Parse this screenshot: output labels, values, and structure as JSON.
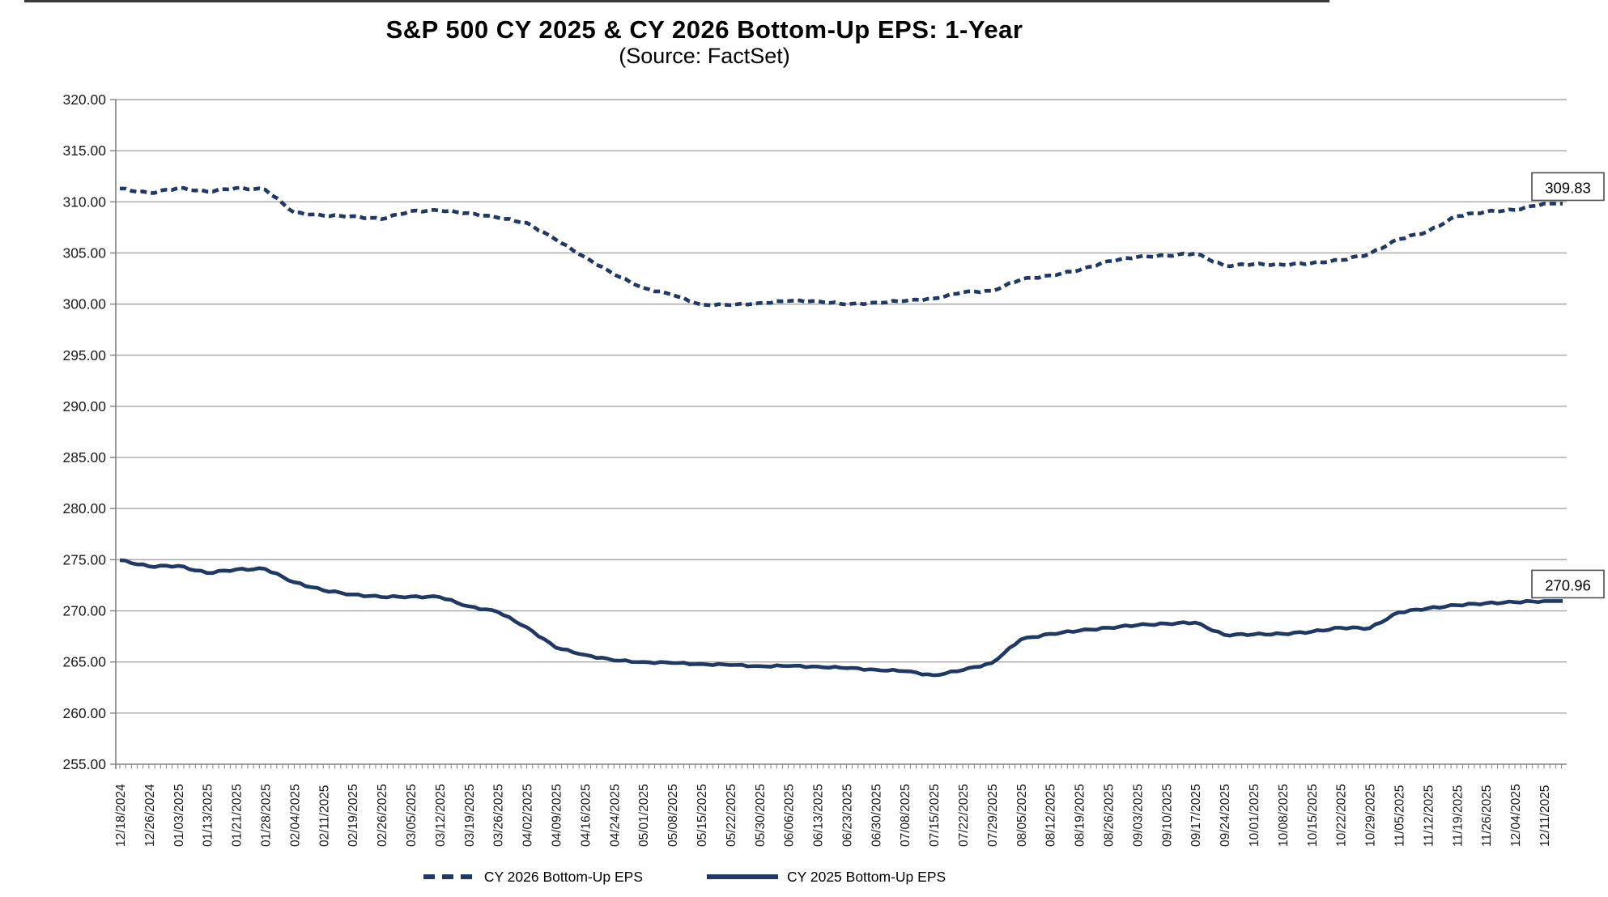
{
  "chart": {
    "title": "S&P 500 CY 2025 & CY 2026 Bottom-Up EPS: 1-Year",
    "subtitle": "(Source: FactSet)",
    "colors": {
      "series": "#1f3864",
      "grid": "#a6a6a6",
      "axis": "#808080",
      "tick_text": "#1a1a1a",
      "label_box_border": "#4d4d4d"
    }
  },
  "chart_data": {
    "type": "line",
    "title": "S&P 500 CY 2025 & CY 2026 Bottom-Up EPS: 1-Year",
    "subtitle": "(Source: FactSet)",
    "ylim": [
      255,
      320
    ],
    "ytick_step": 5,
    "ytick_labels": [
      "255.00",
      "260.00",
      "265.00",
      "270.00",
      "275.00",
      "280.00",
      "285.00",
      "290.00",
      "295.00",
      "300.00",
      "305.00",
      "310.00",
      "315.00",
      "320.00"
    ],
    "grid": "horizontal",
    "legend_position": "bottom",
    "categories": [
      "12/18/2024",
      "12/26/2024",
      "01/03/2025",
      "01/13/2025",
      "01/21/2025",
      "01/28/2025",
      "02/04/2025",
      "02/11/2025",
      "02/19/2025",
      "02/26/2025",
      "03/05/2025",
      "03/12/2025",
      "03/19/2025",
      "03/26/2025",
      "04/02/2025",
      "04/09/2025",
      "04/16/2025",
      "04/24/2025",
      "05/01/2025",
      "05/08/2025",
      "05/15/2025",
      "05/22/2025",
      "05/30/2025",
      "06/06/2025",
      "06/13/2025",
      "06/23/2025",
      "06/30/2025",
      "07/08/2025",
      "07/15/2025",
      "07/22/2025",
      "07/29/2025",
      "08/05/2025",
      "08/12/2025",
      "08/19/2025",
      "08/26/2025",
      "09/03/2025",
      "09/10/2025",
      "09/17/2025",
      "09/24/2025",
      "10/01/2025",
      "10/08/2025",
      "10/15/2025",
      "10/22/2025",
      "10/29/2025",
      "11/05/2025",
      "11/12/2025",
      "11/19/2025",
      "11/26/2025",
      "12/04/2025",
      "12/11/2025"
    ],
    "series": [
      {
        "name": "CY 2026 Bottom-Up EPS",
        "style": "dashed",
        "color": "#1f3864",
        "end_label": "309.83",
        "values": [
          311.3,
          310.85,
          311.35,
          311.0,
          311.35,
          311.2,
          308.95,
          308.65,
          308.6,
          308.3,
          309.1,
          309.15,
          308.9,
          308.45,
          307.95,
          306.3,
          304.6,
          302.9,
          301.6,
          300.9,
          299.95,
          299.9,
          300.1,
          300.3,
          300.3,
          299.95,
          300.15,
          300.3,
          300.55,
          301.15,
          301.3,
          302.4,
          302.8,
          303.3,
          304.2,
          304.6,
          304.75,
          304.95,
          303.75,
          303.9,
          303.85,
          304.0,
          304.3,
          304.9,
          306.35,
          307.1,
          308.6,
          309.05,
          309.2,
          309.83
        ]
      },
      {
        "name": "CY 2025 Bottom-Up EPS",
        "style": "solid",
        "color": "#1f3864",
        "end_label": "270.96",
        "values": [
          274.95,
          274.35,
          274.4,
          273.7,
          274.05,
          274.1,
          272.8,
          272.0,
          271.6,
          271.35,
          271.4,
          271.35,
          270.45,
          269.9,
          268.4,
          266.4,
          265.7,
          265.15,
          265.0,
          264.9,
          264.8,
          264.7,
          264.6,
          264.6,
          264.55,
          264.4,
          264.25,
          264.1,
          263.7,
          264.2,
          264.9,
          267.2,
          267.75,
          268.05,
          268.35,
          268.6,
          268.75,
          268.85,
          267.65,
          267.7,
          267.75,
          267.95,
          268.35,
          268.3,
          269.85,
          270.25,
          270.55,
          270.75,
          270.85,
          270.96
        ]
      }
    ]
  }
}
